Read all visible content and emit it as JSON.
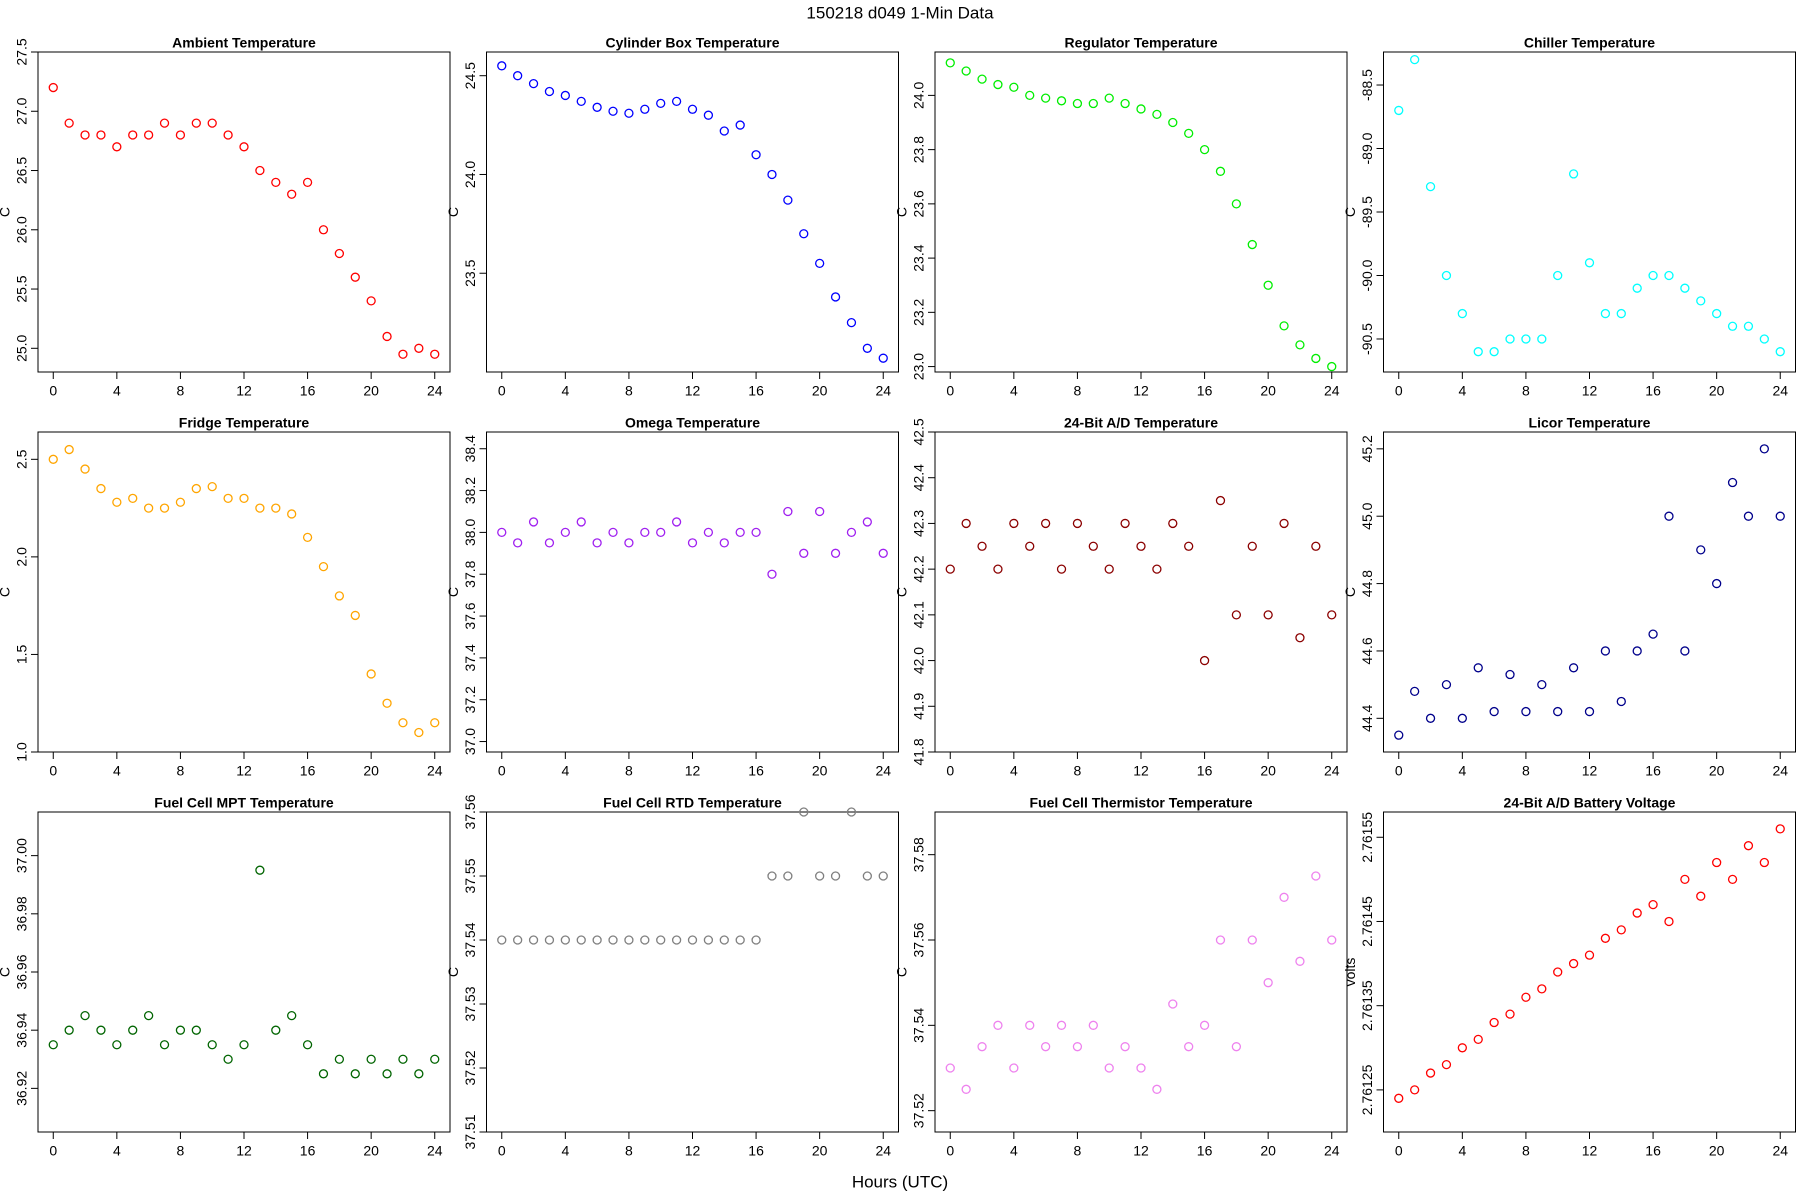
{
  "title": "150218   d049   1-Min Data",
  "xlabel": "Hours (UTC)",
  "chart_data": [
    {
      "type": "scatter",
      "title": "Ambient Temperature",
      "ylabel": "C",
      "color": "#ff0000",
      "x": [
        0,
        1,
        2,
        3,
        4,
        5,
        6,
        7,
        8,
        9,
        10,
        11,
        12,
        13,
        14,
        15,
        16,
        17,
        18,
        19,
        20,
        21,
        22,
        23,
        24
      ],
      "values": [
        27.2,
        26.9,
        26.8,
        26.8,
        26.7,
        26.8,
        26.8,
        26.9,
        26.8,
        26.9,
        26.9,
        26.8,
        26.7,
        26.5,
        26.4,
        26.3,
        26.4,
        26.0,
        25.8,
        25.6,
        25.4,
        25.1,
        24.95,
        25.0,
        24.95
      ],
      "xlim": [
        -0.96,
        24.96
      ],
      "xticks": [
        0,
        4,
        8,
        12,
        16,
        20,
        24
      ],
      "ylim": [
        24.8,
        27.5
      ],
      "yticks": [
        {
          "value": 25,
          "label": "25.0"
        },
        25.5,
        {
          "value": 26,
          "label": "26.0"
        },
        26.5,
        {
          "value": 27,
          "label": "27.0"
        },
        27.5
      ]
    },
    {
      "type": "scatter",
      "title": "Cylinder Box Temperature",
      "ylabel": "C",
      "color": "#0000ff",
      "x": [
        0,
        1,
        2,
        3,
        4,
        5,
        6,
        7,
        8,
        9,
        10,
        11,
        12,
        13,
        14,
        15,
        16,
        17,
        18,
        19,
        20,
        21,
        22,
        23,
        24
      ],
      "values": [
        24.55,
        24.5,
        24.46,
        24.42,
        24.4,
        24.37,
        24.34,
        24.32,
        24.31,
        24.33,
        24.36,
        24.37,
        24.33,
        24.3,
        24.22,
        24.25,
        24.1,
        24.0,
        23.87,
        23.7,
        23.55,
        23.38,
        23.25,
        23.12,
        23.07
      ],
      "xlim": [
        -0.96,
        24.96
      ],
      "xticks": [
        0,
        4,
        8,
        12,
        16,
        20,
        24
      ],
      "ylim": [
        23.0,
        24.62
      ],
      "yticks": [
        23.5,
        {
          "value": 24,
          "label": "24.0"
        },
        24.5
      ]
    },
    {
      "type": "scatter",
      "title": "Regulator Temperature",
      "ylabel": "C",
      "color": "#00ee00",
      "x": [
        0,
        1,
        2,
        3,
        4,
        5,
        6,
        7,
        8,
        9,
        10,
        11,
        12,
        13,
        14,
        15,
        16,
        17,
        18,
        19,
        20,
        21,
        22,
        23,
        24
      ],
      "values": [
        24.12,
        24.09,
        24.06,
        24.04,
        24.03,
        24.0,
        23.99,
        23.98,
        23.97,
        23.97,
        23.99,
        23.97,
        23.95,
        23.93,
        23.9,
        23.86,
        23.8,
        23.72,
        23.6,
        23.45,
        23.3,
        23.15,
        23.08,
        23.03,
        23.0
      ],
      "xlim": [
        -0.96,
        24.96
      ],
      "xticks": [
        0,
        4,
        8,
        12,
        16,
        20,
        24
      ],
      "ylim": [
        22.98,
        24.16
      ],
      "yticks": [
        {
          "value": 23,
          "label": "23.0"
        },
        23.2,
        23.4,
        23.6,
        23.8,
        {
          "value": 24,
          "label": "24.0"
        }
      ]
    },
    {
      "type": "scatter",
      "title": "Chiller Temperature",
      "ylabel": "C",
      "color": "#00ffff",
      "x": [
        0,
        1,
        2,
        3,
        4,
        5,
        6,
        7,
        8,
        9,
        10,
        11,
        12,
        13,
        14,
        15,
        16,
        17,
        18,
        19,
        20,
        21,
        22,
        23,
        24
      ],
      "values": [
        -88.7,
        -88.3,
        -89.3,
        -90.0,
        -90.3,
        -90.6,
        -90.6,
        -90.5,
        -90.5,
        -90.5,
        -90.0,
        -89.2,
        -89.9,
        -90.3,
        -90.3,
        -90.1,
        -90.0,
        -90.0,
        -90.1,
        -90.2,
        -90.3,
        -90.4,
        -90.4,
        -90.5,
        -90.6
      ],
      "xlim": [
        -0.96,
        24.96
      ],
      "xticks": [
        0,
        4,
        8,
        12,
        16,
        20,
        24
      ],
      "ylim": [
        -90.76,
        -88.24
      ],
      "yticks": [
        -90.5,
        {
          "value": -90,
          "label": "-90.0"
        },
        -89.5,
        {
          "value": -89,
          "label": "-89.0"
        },
        -88.5
      ]
    },
    {
      "type": "scatter",
      "title": "Fridge Temperature",
      "ylabel": "C",
      "color": "#ffa500",
      "x": [
        0,
        1,
        2,
        3,
        4,
        5,
        6,
        7,
        8,
        9,
        10,
        11,
        12,
        13,
        14,
        15,
        16,
        17,
        18,
        19,
        20,
        21,
        22,
        23,
        24
      ],
      "values": [
        2.5,
        2.55,
        2.45,
        2.35,
        2.28,
        2.3,
        2.25,
        2.25,
        2.28,
        2.35,
        2.36,
        2.3,
        2.3,
        2.25,
        2.25,
        2.22,
        2.1,
        1.95,
        1.8,
        1.7,
        1.4,
        1.25,
        1.15,
        1.1,
        1.15
      ],
      "xlim": [
        -0.96,
        24.96
      ],
      "xticks": [
        0,
        4,
        8,
        12,
        16,
        20,
        24
      ],
      "ylim": [
        1.0,
        2.64
      ],
      "yticks": [
        {
          "value": 1,
          "label": "1.0"
        },
        1.5,
        {
          "value": 2,
          "label": "2.0"
        },
        2.5
      ]
    },
    {
      "type": "scatter",
      "title": "Omega Temperature",
      "ylabel": "C",
      "color": "#a020f0",
      "x": [
        0,
        1,
        2,
        3,
        4,
        5,
        6,
        7,
        8,
        9,
        10,
        11,
        12,
        13,
        14,
        15,
        16,
        17,
        18,
        19,
        20,
        21,
        22,
        23,
        24
      ],
      "values": [
        38.0,
        37.95,
        38.05,
        37.95,
        38.0,
        38.05,
        37.95,
        38.0,
        37.95,
        38.0,
        38.0,
        38.05,
        37.95,
        38.0,
        37.95,
        38.0,
        38.0,
        37.8,
        38.1,
        37.9,
        38.1,
        37.9,
        38.0,
        38.05,
        37.9
      ],
      "xlim": [
        -0.96,
        24.96
      ],
      "xticks": [
        0,
        4,
        8,
        12,
        16,
        20,
        24
      ],
      "ylim": [
        36.95,
        38.48
      ],
      "yticks": [
        {
          "value": 37,
          "label": "37.0"
        },
        37.2,
        37.4,
        37.6,
        37.8,
        {
          "value": 38,
          "label": "38.0"
        },
        38.2,
        38.4
      ]
    },
    {
      "type": "scatter",
      "title": "24-Bit A/D Temperature",
      "ylabel": "C",
      "color": "#8b0000",
      "x": [
        0,
        1,
        2,
        3,
        4,
        5,
        6,
        7,
        8,
        9,
        10,
        11,
        12,
        13,
        14,
        15,
        16,
        17,
        18,
        19,
        20,
        21,
        22,
        23,
        24
      ],
      "values": [
        42.2,
        42.3,
        42.25,
        42.2,
        42.3,
        42.25,
        42.3,
        42.2,
        42.3,
        42.25,
        42.2,
        42.3,
        42.25,
        42.2,
        42.3,
        42.25,
        42.0,
        42.35,
        42.1,
        42.25,
        42.1,
        42.3,
        42.05,
        42.25,
        42.1
      ],
      "xlim": [
        -0.96,
        24.96
      ],
      "xticks": [
        0,
        4,
        8,
        12,
        16,
        20,
        24
      ],
      "ylim": [
        41.8,
        42.5
      ],
      "yticks": [
        41.8,
        41.9,
        {
          "value": 42,
          "label": "42.0"
        },
        42.1,
        42.2,
        42.3,
        42.4,
        42.5
      ]
    },
    {
      "type": "scatter",
      "title": "Licor Temperature",
      "ylabel": "C",
      "color": "#00008b",
      "x": [
        0,
        1,
        2,
        3,
        4,
        5,
        6,
        7,
        8,
        9,
        10,
        11,
        12,
        13,
        14,
        15,
        16,
        17,
        18,
        19,
        20,
        21,
        22,
        23,
        24
      ],
      "values": [
        44.35,
        44.48,
        44.4,
        44.5,
        44.4,
        44.55,
        44.42,
        44.53,
        44.42,
        44.5,
        44.42,
        44.55,
        44.42,
        44.6,
        44.45,
        44.6,
        44.65,
        45.0,
        44.6,
        44.9,
        44.8,
        45.1,
        45.0,
        45.2,
        45.0
      ],
      "xlim": [
        -0.96,
        24.96
      ],
      "xticks": [
        0,
        4,
        8,
        12,
        16,
        20,
        24
      ],
      "ylim": [
        44.3,
        45.25
      ],
      "yticks": [
        44.4,
        44.6,
        44.8,
        {
          "value": 45,
          "label": "45.0"
        },
        45.2
      ]
    },
    {
      "type": "scatter",
      "title": "Fuel Cell MPT Temperature",
      "ylabel": "C",
      "color": "#006400",
      "x": [
        0,
        1,
        2,
        3,
        4,
        5,
        6,
        7,
        8,
        9,
        10,
        11,
        12,
        13,
        14,
        15,
        16,
        17,
        18,
        19,
        20,
        21,
        22,
        23,
        24
      ],
      "values": [
        36.935,
        36.94,
        36.945,
        36.94,
        36.935,
        36.94,
        36.945,
        36.935,
        36.94,
        36.94,
        36.935,
        36.93,
        36.935,
        36.995,
        36.94,
        36.945,
        36.935,
        36.925,
        36.93,
        36.925,
        36.93,
        36.925,
        36.93,
        36.925,
        36.93
      ],
      "xlim": [
        -0.96,
        24.96
      ],
      "xticks": [
        0,
        4,
        8,
        12,
        16,
        20,
        24
      ],
      "ylim": [
        36.905,
        37.015
      ],
      "yticks": [
        36.92,
        36.94,
        36.96,
        36.98,
        {
          "value": 37,
          "label": "37.00"
        }
      ]
    },
    {
      "type": "scatter",
      "title": "Fuel Cell RTD Temperature",
      "ylabel": "C",
      "color": "#7f7f7f",
      "x": [
        0,
        1,
        2,
        3,
        4,
        5,
        6,
        7,
        8,
        9,
        10,
        11,
        12,
        13,
        14,
        15,
        16,
        17,
        18,
        19,
        20,
        21,
        22,
        23,
        24
      ],
      "values": [
        37.54,
        37.54,
        37.54,
        37.54,
        37.54,
        37.54,
        37.54,
        37.54,
        37.54,
        37.54,
        37.54,
        37.54,
        37.54,
        37.54,
        37.54,
        37.54,
        37.54,
        37.55,
        37.55,
        37.56,
        37.55,
        37.55,
        37.56,
        37.55,
        37.55
      ],
      "xlim": [
        -0.96,
        24.96
      ],
      "xticks": [
        0,
        4,
        8,
        12,
        16,
        20,
        24
      ],
      "ylim": [
        37.51,
        37.56
      ],
      "yticks": [
        37.51,
        37.52,
        37.53,
        37.54,
        37.55,
        37.56
      ]
    },
    {
      "type": "scatter",
      "title": "Fuel Cell Thermistor Temperature",
      "ylabel": "C",
      "color": "#ee82ee",
      "x": [
        0,
        1,
        2,
        3,
        4,
        5,
        6,
        7,
        8,
        9,
        10,
        11,
        12,
        13,
        14,
        15,
        16,
        17,
        18,
        19,
        20,
        21,
        22,
        23,
        24
      ],
      "values": [
        37.53,
        37.525,
        37.535,
        37.54,
        37.53,
        37.54,
        37.535,
        37.54,
        37.535,
        37.54,
        37.53,
        37.535,
        37.53,
        37.525,
        37.545,
        37.535,
        37.54,
        37.56,
        37.535,
        37.56,
        37.55,
        37.57,
        37.555,
        37.575,
        37.56
      ],
      "xlim": [
        -0.96,
        24.96
      ],
      "xticks": [
        0,
        4,
        8,
        12,
        16,
        20,
        24
      ],
      "ylim": [
        37.515,
        37.59
      ],
      "yticks": [
        37.52,
        37.54,
        37.56,
        37.58
      ]
    },
    {
      "type": "scatter",
      "title": "24-Bit A/D Battery Voltage",
      "ylabel": "volts",
      "color": "#ff0000",
      "x": [
        0,
        1,
        2,
        3,
        4,
        5,
        6,
        7,
        8,
        9,
        10,
        11,
        12,
        13,
        14,
        15,
        16,
        17,
        18,
        19,
        20,
        21,
        22,
        23,
        24
      ],
      "values": [
        2.76124,
        2.76125,
        2.76127,
        2.76128,
        2.7613,
        2.76131,
        2.76133,
        2.76134,
        2.76136,
        2.76137,
        2.76139,
        2.7614,
        2.76141,
        2.76143,
        2.76144,
        2.76146,
        2.76147,
        2.76145,
        2.7615,
        2.76148,
        2.76152,
        2.7615,
        2.76154,
        2.76152,
        2.76156
      ],
      "xlim": [
        -0.96,
        24.96
      ],
      "xticks": [
        0,
        4,
        8,
        12,
        16,
        20,
        24
      ],
      "ylim": [
        2.7612,
        2.76158
      ],
      "yticks": [
        2.76125,
        2.76135,
        2.76145,
        2.76155
      ]
    }
  ]
}
